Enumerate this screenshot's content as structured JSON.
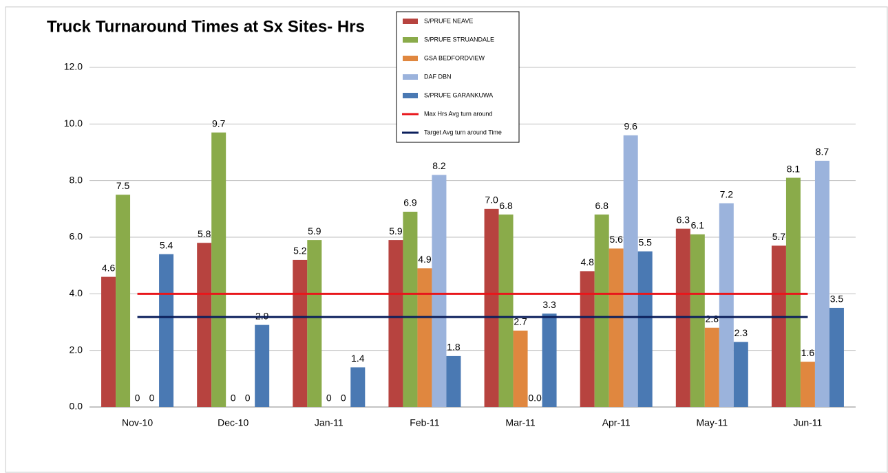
{
  "chart_data": {
    "type": "bar",
    "title": "Truck Turnaround Times at Sx Sites- Hrs",
    "categories": [
      "Nov-10",
      "Dec-10",
      "Jan-11",
      "Feb-11",
      "Mar-11",
      "Apr-11",
      "May-11",
      "Jun-11"
    ],
    "series": [
      {
        "name": "S/PRUFE NEAVE",
        "color": "#b7433f",
        "values": [
          4.6,
          5.8,
          5.2,
          5.9,
          7.0,
          4.8,
          6.3,
          5.7
        ],
        "value_labels": [
          "4.6",
          "5.8",
          "5.2",
          "5.9",
          "7.0",
          "4.8",
          "6.3",
          "5.7"
        ]
      },
      {
        "name": "S/PRUFE STRUANDALE",
        "color": "#8aab4a",
        "values": [
          7.5,
          9.7,
          5.9,
          6.9,
          6.8,
          6.8,
          6.1,
          8.1
        ],
        "value_labels": [
          "7.5",
          "9.7",
          "5.9",
          "6.9",
          "6.8",
          "6.8",
          "6.1",
          "8.1"
        ]
      },
      {
        "name": "GSA BEDFORDVIEW",
        "color": "#e0873f",
        "values": [
          0,
          0,
          0,
          4.9,
          2.7,
          5.6,
          2.8,
          1.6
        ],
        "value_labels": [
          "0",
          "0",
          "0",
          "4.9",
          "2.7",
          "5.6",
          "2.8",
          "1.6"
        ]
      },
      {
        "name": "DAF DBN",
        "color": "#9bb3dc",
        "values": [
          0,
          0,
          0,
          8.2,
          0.0,
          9.6,
          7.2,
          8.7
        ],
        "value_labels": [
          "0",
          "0",
          "0",
          "8.2",
          "0.0",
          "9.6",
          "7.2",
          "8.7"
        ]
      },
      {
        "name": "S/PRUFE GARANKUWA",
        "color": "#4a79b3",
        "values": [
          5.4,
          2.9,
          1.4,
          1.8,
          3.3,
          5.5,
          2.3,
          3.5
        ],
        "value_labels": [
          "5.4",
          "2.9",
          "1.4",
          "1.8",
          "3.3",
          "5.5",
          "2.3",
          "3.5"
        ]
      },
      {
        "name": "Max Hrs Avg turn around",
        "type": "line",
        "color": "#e8161b",
        "values": [
          4.0,
          4.0,
          4.0,
          4.0,
          4.0,
          4.0,
          4.0,
          4.0
        ]
      },
      {
        "name": "Target Avg turn around Time",
        "type": "line",
        "color": "#0b1f5c",
        "values": [
          3.18,
          3.18,
          3.18,
          3.18,
          3.18,
          3.18,
          3.18,
          3.18
        ]
      }
    ],
    "ylim": [
      0,
      12
    ],
    "yticks": [
      {
        "value": 0,
        "label": "0.0"
      },
      {
        "value": 2,
        "label": "2.0"
      },
      {
        "value": 4,
        "label": "4.0"
      },
      {
        "value": 6,
        "label": "6.0"
      },
      {
        "value": 8,
        "label": "8.0"
      },
      {
        "value": 10,
        "label": "10.0"
      },
      {
        "value": 12,
        "label": "12.0"
      }
    ],
    "grid": true
  }
}
